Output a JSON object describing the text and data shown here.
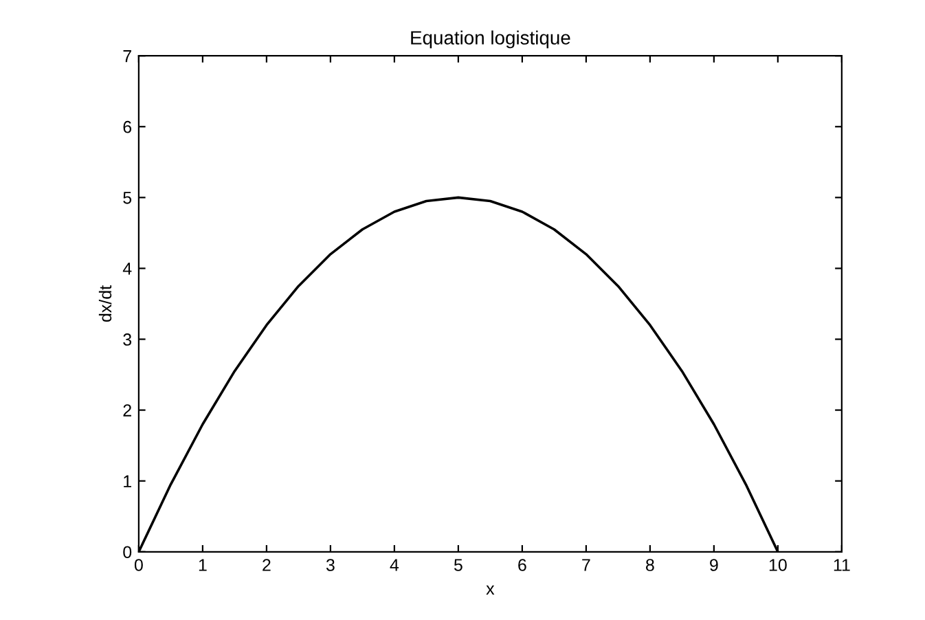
{
  "chart_data": {
    "type": "line",
    "title": "Equation logistique",
    "xlabel": "x",
    "ylabel": "dx/dt",
    "x": [
      0,
      0.5,
      1,
      1.5,
      2,
      2.5,
      3,
      3.5,
      4,
      4.5,
      5,
      5.5,
      6,
      6.5,
      7,
      7.5,
      8,
      8.5,
      9,
      9.5,
      10
    ],
    "series": [
      {
        "color": "#000000",
        "values": [
          0,
          0.95,
          1.8,
          2.55,
          3.2,
          3.75,
          4.2,
          4.55,
          4.8,
          4.95,
          5,
          4.95,
          4.8,
          4.55,
          4.2,
          3.75,
          3.2,
          2.55,
          1.8,
          0.95,
          0
        ]
      }
    ],
    "xlim": [
      0,
      11
    ],
    "xticks": [
      0,
      1,
      2,
      3,
      4,
      5,
      6,
      7,
      8,
      9,
      10,
      11
    ],
    "ylim": [
      0,
      7
    ],
    "yticks": [
      0,
      1,
      2,
      3,
      4,
      5,
      6,
      7
    ],
    "grid": false,
    "legend": false,
    "marker": "none",
    "line_style": "solid"
  }
}
